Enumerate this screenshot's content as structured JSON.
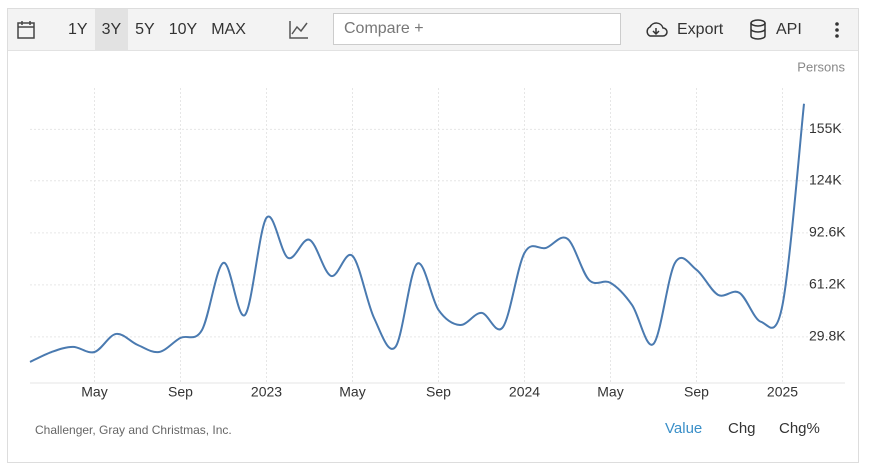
{
  "toolbar": {
    "ranges": [
      "1Y",
      "3Y",
      "5Y",
      "10Y",
      "MAX"
    ],
    "selected_range": "3Y",
    "compare_placeholder": "Compare +",
    "export": "Export",
    "api": "API"
  },
  "chart_data": {
    "type": "line",
    "unit": "Persons",
    "categories": [
      null,
      null,
      null,
      "May",
      null,
      null,
      null,
      "Sep",
      null,
      null,
      null,
      "2023",
      null,
      null,
      null,
      "May",
      null,
      null,
      null,
      "Sep",
      null,
      null,
      null,
      "2024",
      null,
      null,
      null,
      "May",
      null,
      null,
      null,
      "Sep",
      null,
      null,
      null,
      "2025",
      null
    ],
    "series": [
      {
        "name": "Value",
        "color": "#4a7ab0",
        "values": [
          14700,
          20700,
          23800,
          20700,
          31600,
          25000,
          20700,
          29200,
          34000,
          74500,
          43100,
          101700,
          77500,
          88400,
          66600,
          78700,
          41300,
          23800,
          73900,
          46100,
          37000,
          44300,
          35800,
          80500,
          83500,
          89000,
          64200,
          62400,
          49100,
          25600,
          74500,
          70300,
          55200,
          56400,
          38900,
          49100,
          170500
        ]
      }
    ],
    "ylim": [
      2000,
      180000
    ],
    "yticks": [
      {
        "value": 29800,
        "label": "29.8K"
      },
      {
        "value": 61200,
        "label": "61.2K"
      },
      {
        "value": 92600,
        "label": "92.6K"
      },
      {
        "value": 124000,
        "label": "124K"
      },
      {
        "value": 155000,
        "label": "155K"
      }
    ],
    "grid": true,
    "source": "Challenger, Gray and Christmas, Inc."
  },
  "footer": {
    "views": [
      "Value",
      "Chg",
      "Chg%"
    ],
    "active_view": "Value"
  }
}
